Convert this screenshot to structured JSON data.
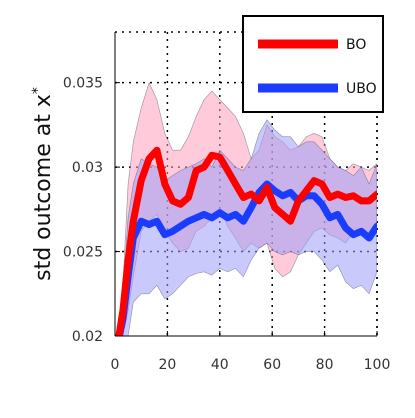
{
  "chart_data": {
    "type": "line",
    "title": "",
    "xlabel": "",
    "ylabel": "std outcome at x",
    "ylabel_superscript": "*",
    "xlim": [
      0,
      100
    ],
    "ylim": [
      0.02,
      0.038
    ],
    "xticks": [
      0,
      20,
      40,
      60,
      80,
      100
    ],
    "xtick_labels": [
      "0",
      "20",
      "40",
      "60",
      "80",
      "100"
    ],
    "yticks": [
      0.02,
      0.025,
      0.03,
      0.035
    ],
    "ytick_labels": [
      "0.02",
      "0.025",
      "0.03",
      "0.035"
    ],
    "grid": true,
    "legend_position": "top-right",
    "x": [
      1,
      3,
      5,
      7,
      10,
      13,
      16,
      19,
      22,
      25,
      28,
      31,
      34,
      37,
      40,
      43,
      46,
      49,
      52,
      55,
      58,
      61,
      64,
      67,
      70,
      73,
      76,
      79,
      82,
      85,
      88,
      91,
      94,
      97,
      100
    ],
    "series": [
      {
        "name": "BO",
        "color": "#ff0000",
        "band_color": "#ff9fb9",
        "values": [
          0.0195,
          0.0215,
          0.0245,
          0.0268,
          0.0292,
          0.0305,
          0.031,
          0.029,
          0.028,
          0.0278,
          0.0282,
          0.0298,
          0.03,
          0.0307,
          0.0306,
          0.0298,
          0.029,
          0.0282,
          0.0284,
          0.028,
          0.0288,
          0.0276,
          0.0272,
          0.0268,
          0.028,
          0.0286,
          0.0292,
          0.029,
          0.0282,
          0.0284,
          0.0282,
          0.0283,
          0.028,
          0.028,
          0.0284
        ],
        "upper": [
          0.02,
          0.023,
          0.029,
          0.0315,
          0.0335,
          0.035,
          0.034,
          0.032,
          0.031,
          0.031,
          0.0318,
          0.033,
          0.034,
          0.0345,
          0.034,
          0.0335,
          0.033,
          0.032,
          0.0305,
          0.031,
          0.0325,
          0.0318,
          0.0315,
          0.031,
          0.0312,
          0.0318,
          0.032,
          0.0318,
          0.0305,
          0.03,
          0.0298,
          0.0302,
          0.03,
          0.0298,
          0.0302
        ],
        "lower": [
          0.019,
          0.02,
          0.0215,
          0.0235,
          0.0262,
          0.0268,
          0.0272,
          0.0262,
          0.0255,
          0.025,
          0.0252,
          0.0262,
          0.0265,
          0.027,
          0.0275,
          0.0265,
          0.0258,
          0.025,
          0.0255,
          0.0252,
          0.0255,
          0.024,
          0.0235,
          0.0238,
          0.0248,
          0.0255,
          0.0262,
          0.0264,
          0.026,
          0.0258,
          0.0255,
          0.0262,
          0.0262,
          0.026,
          0.0264
        ]
      },
      {
        "name": "UBO",
        "color": "#1a3cff",
        "band_color": "#9d9ff7",
        "values": [
          0.0195,
          0.021,
          0.0235,
          0.0258,
          0.0268,
          0.0266,
          0.0268,
          0.026,
          0.0262,
          0.0265,
          0.0268,
          0.027,
          0.0272,
          0.027,
          0.0273,
          0.027,
          0.0272,
          0.0268,
          0.0276,
          0.0285,
          0.029,
          0.0286,
          0.0283,
          0.0285,
          0.028,
          0.0283,
          0.0283,
          0.0278,
          0.027,
          0.0272,
          0.0264,
          0.026,
          0.0262,
          0.0258,
          0.0265
        ],
        "upper": [
          0.02,
          0.0225,
          0.027,
          0.029,
          0.0305,
          0.0302,
          0.03,
          0.0292,
          0.0295,
          0.0298,
          0.03,
          0.0302,
          0.0305,
          0.03,
          0.031,
          0.0305,
          0.03,
          0.0298,
          0.0305,
          0.032,
          0.0328,
          0.0322,
          0.0318,
          0.0318,
          0.0312,
          0.0315,
          0.0315,
          0.031,
          0.0305,
          0.03,
          0.0298,
          0.0295,
          0.03,
          0.029,
          0.0302
        ],
        "lower": [
          0.019,
          0.0195,
          0.02,
          0.022,
          0.0225,
          0.0225,
          0.023,
          0.0222,
          0.0225,
          0.023,
          0.0235,
          0.0237,
          0.0238,
          0.0236,
          0.024,
          0.0238,
          0.024,
          0.0235,
          0.0245,
          0.0252,
          0.0255,
          0.025,
          0.0248,
          0.025,
          0.0248,
          0.025,
          0.025,
          0.0245,
          0.0238,
          0.0242,
          0.0232,
          0.0228,
          0.023,
          0.0225,
          0.0238
        ]
      }
    ]
  }
}
